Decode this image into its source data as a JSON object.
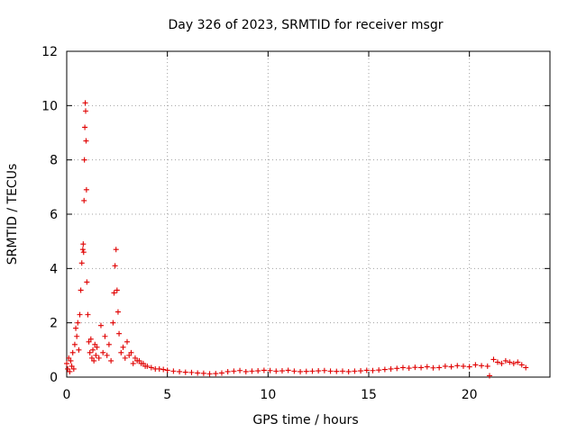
{
  "chart_data": {
    "type": "scatter",
    "title": "Day 326 of 2023, SRMTID for receiver msgr",
    "xlabel": "GPS time / hours",
    "ylabel": "SRMTID / TECUs",
    "xlim": [
      0,
      24
    ],
    "ylim": [
      0,
      12
    ],
    "xticks": [
      0,
      5,
      10,
      15,
      20
    ],
    "yticks": [
      0,
      2,
      4,
      6,
      8,
      10,
      12
    ],
    "xtick_labels": [
      "0",
      "5",
      "10",
      "15",
      "20"
    ],
    "ytick_labels": [
      "0",
      "2",
      "4",
      "6",
      "8",
      "10",
      "12"
    ],
    "grid": true,
    "marker": "+",
    "series": [
      {
        "name": "SRMTID",
        "color": "#e00000",
        "x": [
          0.0,
          0.05,
          0.1,
          0.15,
          0.2,
          0.25,
          0.3,
          0.35,
          0.4,
          0.45,
          0.5,
          0.55,
          0.6,
          0.65,
          0.7,
          0.75,
          0.8,
          0.82,
          0.84,
          0.86,
          0.88,
          0.9,
          0.92,
          0.94,
          0.96,
          0.98,
          1.0,
          1.05,
          1.1,
          1.15,
          1.2,
          1.25,
          1.3,
          1.35,
          1.4,
          1.45,
          1.5,
          1.6,
          1.7,
          1.8,
          1.9,
          2.0,
          2.1,
          2.2,
          2.3,
          2.35,
          2.4,
          2.45,
          2.5,
          2.55,
          2.6,
          2.7,
          2.8,
          2.9,
          3.0,
          3.1,
          3.2,
          3.3,
          3.4,
          3.5,
          3.6,
          3.7,
          3.8,
          3.9,
          4.0,
          4.2,
          4.4,
          4.6,
          4.8,
          5.0,
          5.3,
          5.6,
          5.9,
          6.2,
          6.5,
          6.8,
          7.1,
          7.4,
          7.7,
          8.0,
          8.3,
          8.6,
          8.9,
          9.2,
          9.5,
          9.8,
          10.1,
          10.4,
          10.7,
          11.0,
          11.3,
          11.6,
          11.9,
          12.2,
          12.5,
          12.8,
          13.1,
          13.4,
          13.7,
          14.0,
          14.3,
          14.6,
          14.9,
          15.2,
          15.5,
          15.8,
          16.1,
          16.4,
          16.7,
          17.0,
          17.3,
          17.6,
          17.9,
          18.2,
          18.5,
          18.8,
          19.1,
          19.4,
          19.7,
          20.0,
          20.3,
          20.6,
          20.9,
          21.0,
          21.2,
          21.4,
          21.6,
          21.8,
          22.0,
          22.2,
          22.4,
          22.6,
          22.8
        ],
        "y": [
          0.5,
          0.3,
          0.7,
          0.2,
          0.6,
          0.4,
          0.9,
          0.3,
          1.2,
          1.8,
          1.5,
          2.0,
          1.0,
          2.3,
          3.2,
          4.2,
          4.7,
          4.9,
          4.6,
          6.5,
          8.0,
          9.2,
          10.1,
          9.8,
          8.7,
          6.9,
          3.5,
          2.3,
          1.3,
          0.9,
          1.4,
          0.7,
          1.0,
          0.6,
          1.2,
          0.8,
          1.1,
          0.7,
          1.9,
          0.9,
          1.5,
          0.8,
          1.2,
          0.6,
          2.0,
          3.1,
          4.1,
          4.7,
          3.2,
          2.4,
          1.6,
          0.9,
          1.1,
          0.7,
          1.3,
          0.8,
          0.9,
          0.5,
          0.7,
          0.6,
          0.6,
          0.5,
          0.5,
          0.4,
          0.4,
          0.35,
          0.3,
          0.3,
          0.28,
          0.25,
          0.22,
          0.2,
          0.18,
          0.17,
          0.15,
          0.14,
          0.12,
          0.13,
          0.15,
          0.2,
          0.22,
          0.24,
          0.2,
          0.22,
          0.23,
          0.25,
          0.24,
          0.22,
          0.23,
          0.25,
          0.22,
          0.2,
          0.21,
          0.22,
          0.23,
          0.24,
          0.22,
          0.21,
          0.22,
          0.2,
          0.22,
          0.23,
          0.25,
          0.24,
          0.26,
          0.28,
          0.3,
          0.32,
          0.35,
          0.33,
          0.36,
          0.35,
          0.38,
          0.34,
          0.35,
          0.4,
          0.38,
          0.42,
          0.4,
          0.38,
          0.45,
          0.42,
          0.4,
          0.05,
          0.65,
          0.55,
          0.5,
          0.6,
          0.55,
          0.5,
          0.55,
          0.45,
          0.35
        ]
      }
    ]
  }
}
